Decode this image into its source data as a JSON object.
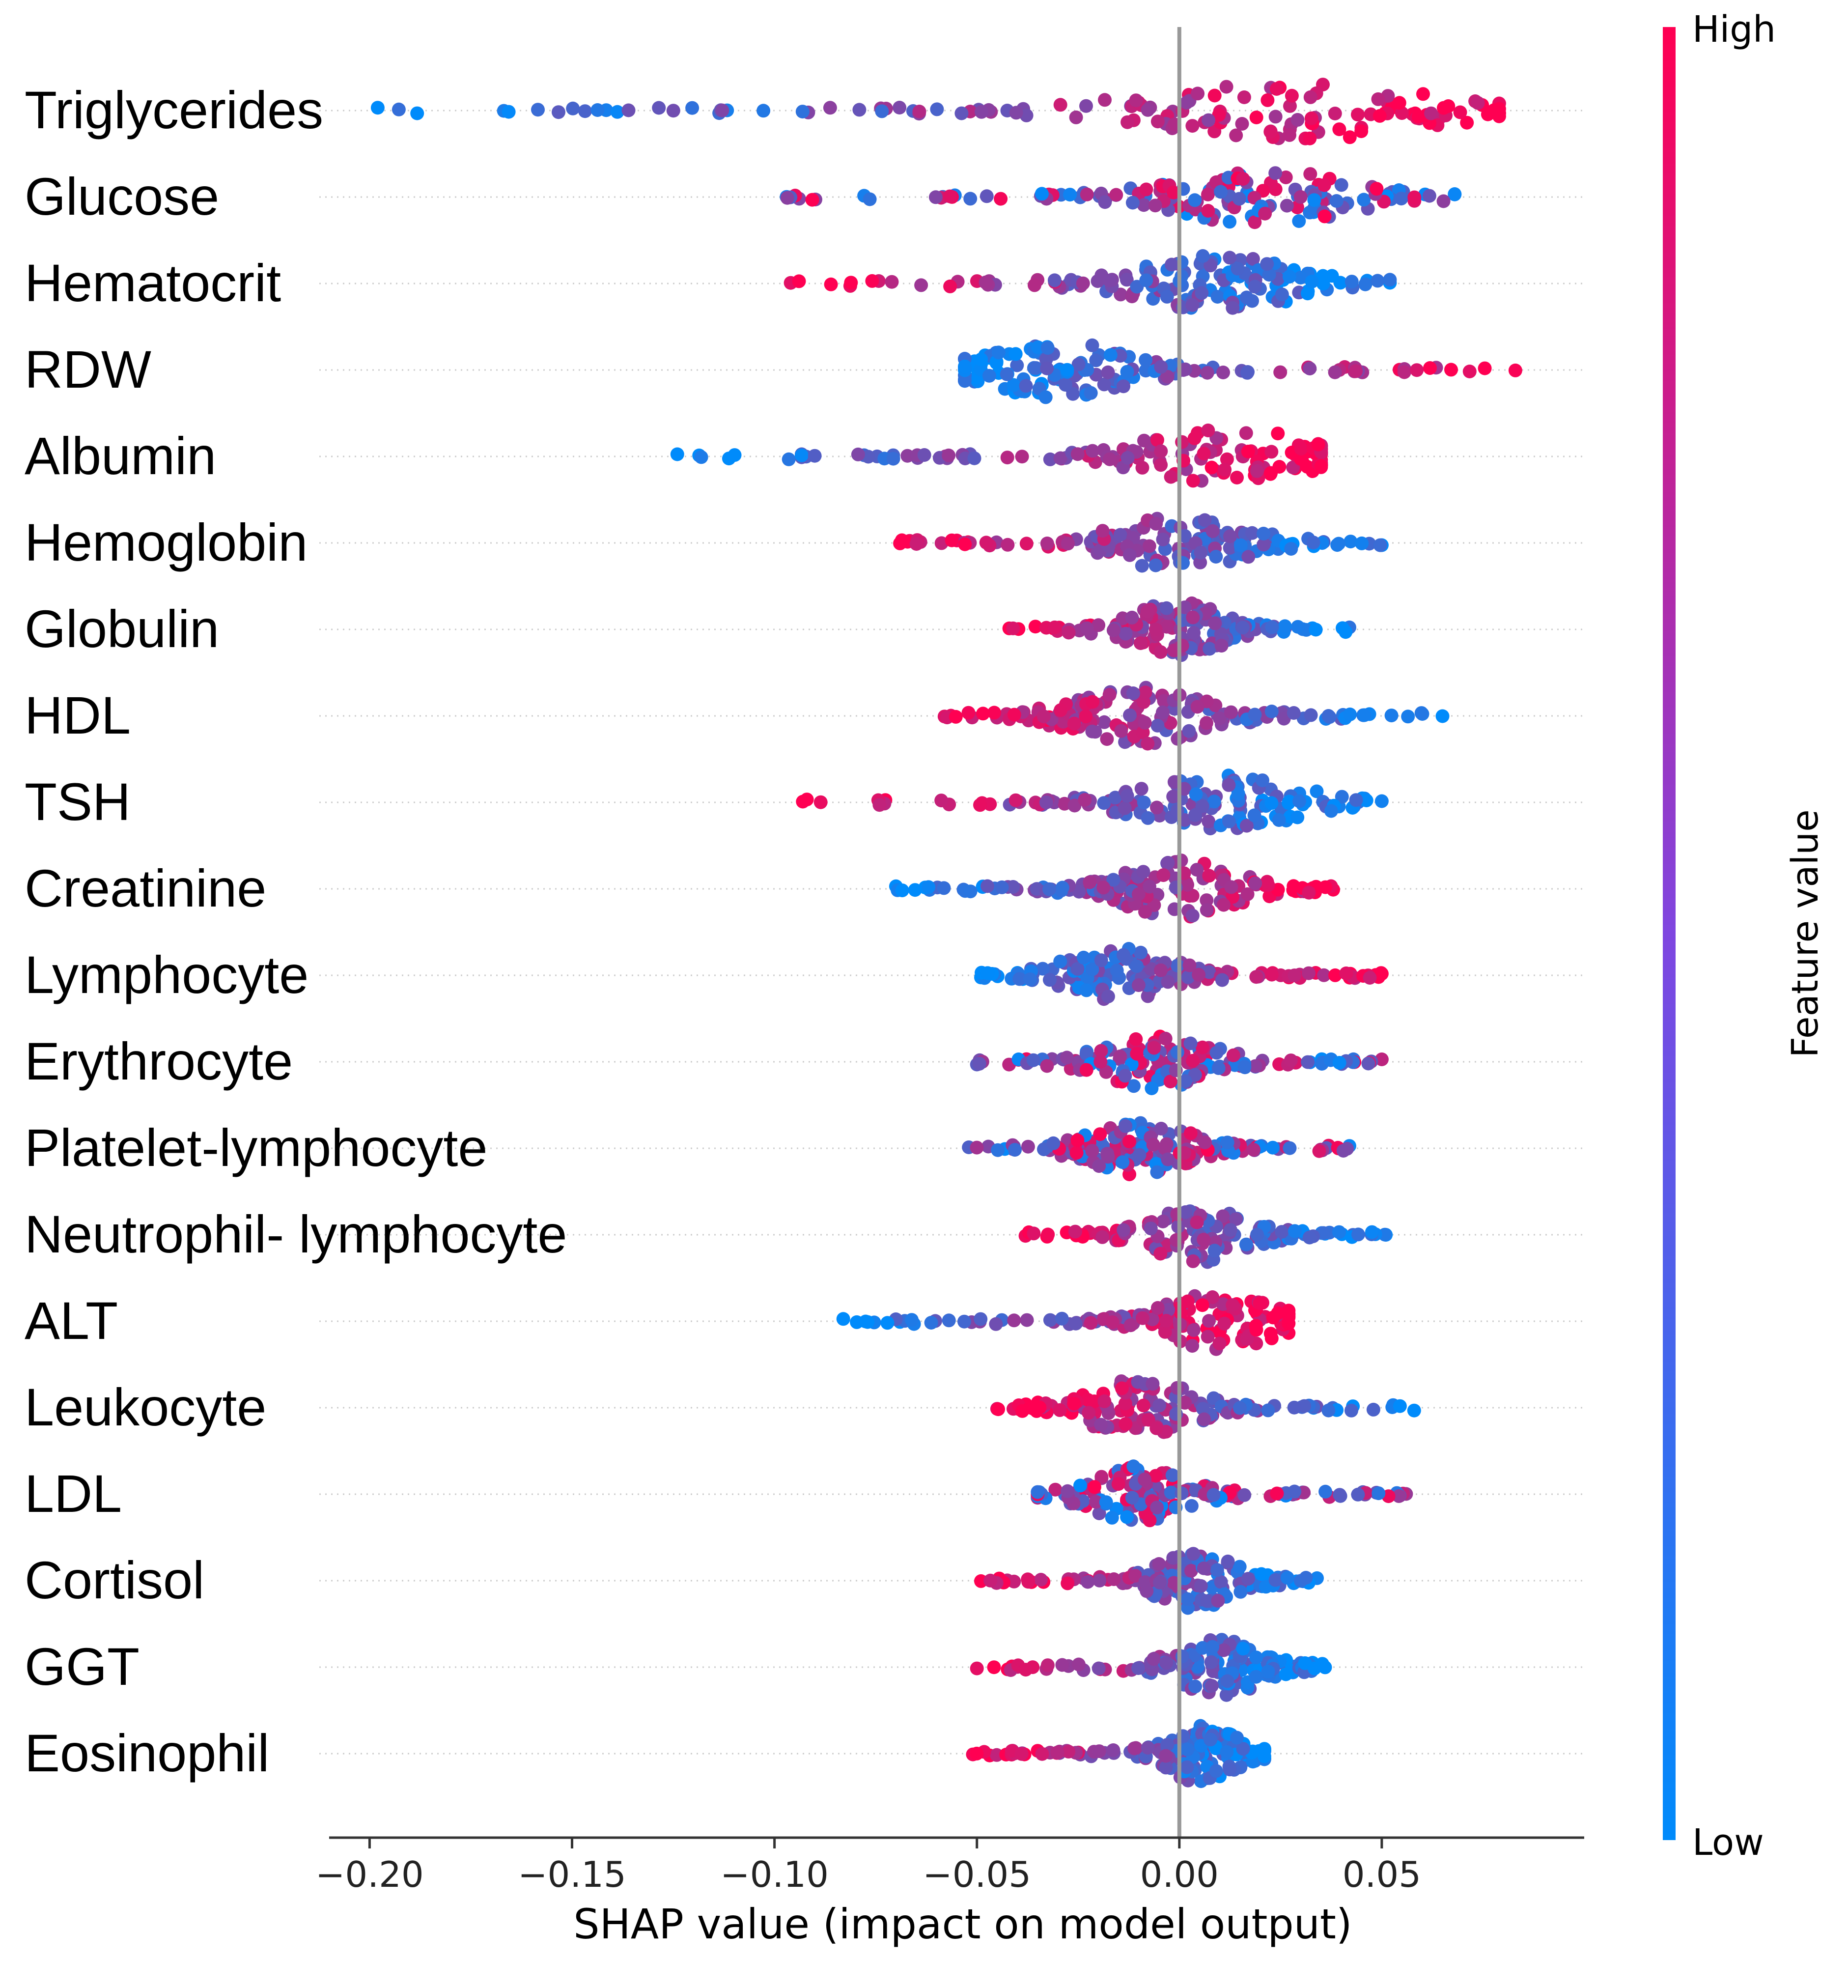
{
  "chart_data": {
    "type": "scatter",
    "subtype": "shap-beeswarm",
    "xlabel": "SHAP value (impact on model output)",
    "ylabel": "",
    "xlim": [
      -0.21,
      0.1
    ],
    "xticks": [
      -0.2,
      -0.15,
      -0.1,
      -0.05,
      0.0,
      0.05
    ],
    "xtick_labels": [
      "−0.20",
      "−0.15",
      "−0.10",
      "−0.05",
      "0.00",
      "0.05"
    ],
    "zero_line": 0.0,
    "colorbar": {
      "label": "Feature value",
      "high": "High",
      "low": "Low",
      "high_color": "#ff0052",
      "low_color": "#008bfb"
    },
    "colors": {
      "low": "#008bfb",
      "high": "#ff0052",
      "zero_line": "#999999",
      "axis": "#333333",
      "row_line": "#cccccc"
    },
    "features": [
      {
        "name": "Triglycerides",
        "min": -0.198,
        "max": 0.079,
        "center": 0.03,
        "low_side": "left"
      },
      {
        "name": "Glucose",
        "min": -0.097,
        "max": 0.068,
        "center": 0.02,
        "low_side": "mixed"
      },
      {
        "name": "Hematocrit",
        "min": -0.096,
        "max": 0.052,
        "center": 0.01,
        "low_side": "right"
      },
      {
        "name": "RDW",
        "min": -0.053,
        "max": 0.083,
        "center": -0.03,
        "low_side": "left"
      },
      {
        "name": "Albumin",
        "min": -0.124,
        "max": 0.035,
        "center": 0.012,
        "low_side": "left"
      },
      {
        "name": "Hemoglobin",
        "min": -0.069,
        "max": 0.05,
        "center": 0.0,
        "low_side": "right"
      },
      {
        "name": "Globulin",
        "min": -0.042,
        "max": 0.042,
        "center": 0.0,
        "low_side": "right"
      },
      {
        "name": "HDL",
        "min": -0.058,
        "max": 0.065,
        "center": -0.01,
        "low_side": "right"
      },
      {
        "name": "TSH",
        "min": -0.093,
        "max": 0.05,
        "center": 0.01,
        "low_side": "right"
      },
      {
        "name": "Creatinine",
        "min": -0.07,
        "max": 0.038,
        "center": 0.0,
        "low_side": "left"
      },
      {
        "name": "Lymphocyte",
        "min": -0.049,
        "max": 0.05,
        "center": -0.015,
        "low_side": "left"
      },
      {
        "name": "Erythrocyte",
        "min": -0.05,
        "max": 0.05,
        "center": -0.005,
        "low_side": "mixed"
      },
      {
        "name": "Platelet-lymphocyte",
        "min": -0.052,
        "max": 0.042,
        "center": -0.01,
        "low_side": "mixed"
      },
      {
        "name": "Neutrophil- lymphocyte",
        "min": -0.038,
        "max": 0.051,
        "center": 0.005,
        "low_side": "right"
      },
      {
        "name": "ALT",
        "min": -0.083,
        "max": 0.027,
        "center": 0.01,
        "low_side": "left"
      },
      {
        "name": "Leukocyte",
        "min": -0.045,
        "max": 0.058,
        "center": -0.01,
        "low_side": "right"
      },
      {
        "name": "LDL",
        "min": -0.035,
        "max": 0.056,
        "center": -0.01,
        "low_side": "mixed"
      },
      {
        "name": "Cortisol",
        "min": -0.049,
        "max": 0.034,
        "center": 0.005,
        "low_side": "right"
      },
      {
        "name": "GGT",
        "min": -0.05,
        "max": 0.036,
        "center": 0.01,
        "low_side": "right"
      },
      {
        "name": "Eosinophil",
        "min": -0.051,
        "max": 0.021,
        "center": 0.005,
        "low_side": "right"
      }
    ]
  }
}
